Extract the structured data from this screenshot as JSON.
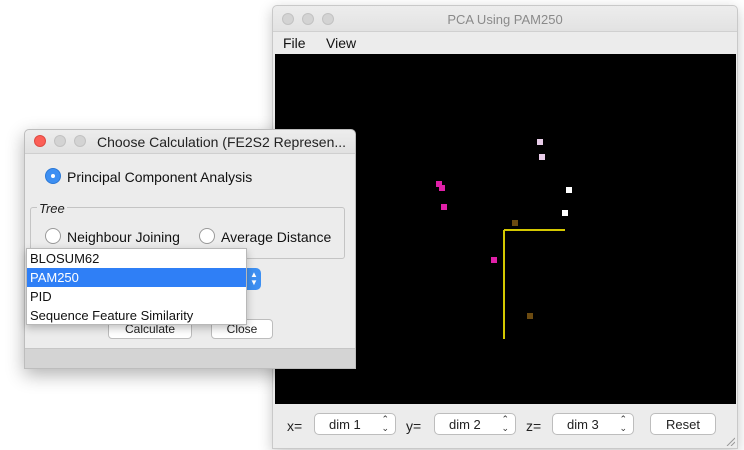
{
  "pca_window": {
    "title": "PCA Using PAM250",
    "menu": [
      "File",
      "View"
    ],
    "controls": {
      "x_label": "x=",
      "y_label": "y=",
      "z_label": "z=",
      "x_value": "dim 1",
      "y_value": "dim 2",
      "z_value": "dim 3",
      "reset_label": "Reset"
    },
    "plot": {
      "background": "#000000",
      "axis_color": "#d4c800",
      "points": [
        {
          "color": "#e8cce8"
        },
        {
          "color": "#e8cce8"
        },
        {
          "color": "#e020a8"
        },
        {
          "color": "#e020a8"
        },
        {
          "color": "#e020a8"
        },
        {
          "color": "#e020a8"
        },
        {
          "color": "#ffffff"
        },
        {
          "color": "#ffffff"
        },
        {
          "color": "#6b4a10"
        },
        {
          "color": "#6b4a10"
        }
      ]
    }
  },
  "calc_dialog": {
    "title": "Choose Calculation (FE2S2 Represen...",
    "pca_option": "Principal Component Analysis",
    "pca_selected": true,
    "tree_group_label": "Tree",
    "tree_options": [
      "Neighbour Joining",
      "Average Distance"
    ],
    "calculate_label": "Calculate",
    "close_label": "Close"
  },
  "score_model_dropdown": {
    "options": [
      "BLOSUM62",
      "PAM250",
      "PID",
      "Sequence Feature Similarity"
    ],
    "selected": "PAM250"
  }
}
